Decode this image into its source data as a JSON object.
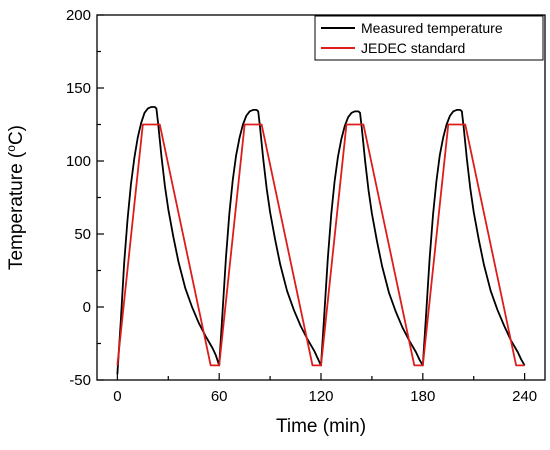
{
  "chart_data": {
    "type": "line",
    "xlabel": "Time (min)",
    "ylabel_main": "Temperature (",
    "ylabel_sup": "o",
    "ylabel_tail": "C)",
    "xlim": [
      -12,
      252
    ],
    "ylim": [
      -50,
      200
    ],
    "xticks": [
      0,
      60,
      120,
      180,
      240
    ],
    "yticks": [
      -50,
      0,
      50,
      100,
      150,
      200
    ],
    "xtick_labels": [
      "0",
      "60",
      "120",
      "180",
      "240"
    ],
    "ytick_labels": [
      "-50",
      "0",
      "50",
      "100",
      "150",
      "200"
    ],
    "legend_position": "top-right",
    "series": [
      {
        "name": "Measured temperature",
        "color": "#000000",
        "x": [
          0,
          2,
          4,
          6,
          8,
          10,
          12,
          14,
          16,
          18,
          20,
          22,
          23,
          24,
          26,
          28,
          30,
          33,
          36,
          40,
          44,
          48,
          52,
          56,
          58,
          60,
          62,
          64,
          66,
          68,
          70,
          72,
          74,
          76,
          78,
          80,
          82,
          83,
          84,
          86,
          88,
          90,
          93,
          96,
          100,
          104,
          108,
          112,
          116,
          118,
          120,
          122,
          124,
          126,
          128,
          130,
          132,
          134,
          136,
          138,
          140,
          142,
          143,
          144,
          146,
          148,
          150,
          153,
          156,
          160,
          164,
          168,
          172,
          176,
          178,
          180,
          182,
          184,
          186,
          188,
          190,
          192,
          194,
          196,
          198,
          200,
          202,
          203,
          204,
          206,
          208,
          210,
          213,
          216,
          220,
          224,
          228,
          232,
          236,
          238,
          240
        ],
        "y": [
          -46,
          -10,
          30,
          60,
          84,
          102,
          116,
          126,
          133,
          136,
          137,
          137,
          136,
          126,
          103,
          83,
          67,
          48,
          31,
          13,
          0,
          -11,
          -20,
          -28,
          -33,
          -40,
          -3,
          34,
          64,
          87,
          104,
          116,
          125,
          131,
          134,
          135,
          135,
          134,
          124,
          101,
          81,
          65,
          46,
          29,
          11,
          -2,
          -13,
          -22,
          -30,
          -35,
          -40,
          -4,
          33,
          63,
          86,
          103,
          115,
          124,
          130,
          133,
          134,
          134,
          133,
          123,
          100,
          80,
          64,
          45,
          28,
          10,
          -3,
          -14,
          -23,
          -31,
          -36,
          -40,
          -4,
          33,
          63,
          86,
          104,
          116,
          125,
          131,
          134,
          135,
          135,
          134,
          124,
          101,
          81,
          65,
          46,
          29,
          11,
          -2,
          -13,
          -23,
          -31,
          -36,
          -40
        ]
      },
      {
        "name": "JEDEC standard",
        "color": "#dd1c1c",
        "x": [
          0,
          15,
          25,
          55,
          60,
          75,
          85,
          115,
          120,
          135,
          145,
          175,
          180,
          195,
          205,
          235,
          240
        ],
        "y": [
          -40,
          125,
          125,
          -40,
          -40,
          125,
          125,
          -40,
          -40,
          125,
          125,
          -40,
          -40,
          125,
          125,
          -40,
          -40
        ]
      }
    ]
  }
}
